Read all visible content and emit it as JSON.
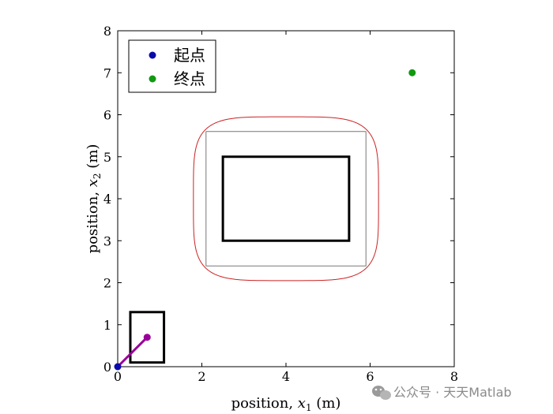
{
  "chart_data": {
    "type": "scatter",
    "title": "",
    "xlabel": {
      "prefix": "position, ",
      "var": "x",
      "sub": "1",
      "suffix": " (m)"
    },
    "ylabel": {
      "prefix": "position, ",
      "var": "x",
      "sub": "2",
      "suffix": " (m)"
    },
    "xlim": [
      0,
      8
    ],
    "ylim": [
      0,
      8
    ],
    "xticks": [
      "0",
      "2",
      "4",
      "6",
      "8"
    ],
    "yticks": [
      "0",
      "1",
      "2",
      "3",
      "4",
      "5",
      "6",
      "7",
      "8"
    ],
    "grid": false,
    "legend_position": "top-left",
    "series": [
      {
        "name": "起点",
        "color": "#0a0aaa",
        "points": [
          [
            0,
            0
          ]
        ]
      },
      {
        "name": "终点",
        "color": "#119911",
        "points": [
          [
            7,
            7
          ]
        ]
      }
    ],
    "robot": {
      "body": {
        "x": [
          0.3,
          1.1
        ],
        "y": [
          0.1,
          1.3
        ]
      },
      "link": {
        "from": [
          0,
          0
        ],
        "to": [
          0.7,
          0.7
        ],
        "color": "#990099"
      }
    },
    "obstacle": {
      "core": {
        "x": [
          2.5,
          5.5
        ],
        "y": [
          3,
          5
        ]
      },
      "expanded": {
        "x": [
          2.1,
          5.9
        ],
        "y": [
          2.4,
          5.6
        ]
      },
      "safety_curve": {
        "x": [
          1.8,
          6.2
        ],
        "y": [
          2.05,
          5.95
        ],
        "color": "#cc2222"
      }
    }
  },
  "watermark": {
    "icon": "wechat-icon",
    "text": "公众号 · 天天Matlab"
  }
}
